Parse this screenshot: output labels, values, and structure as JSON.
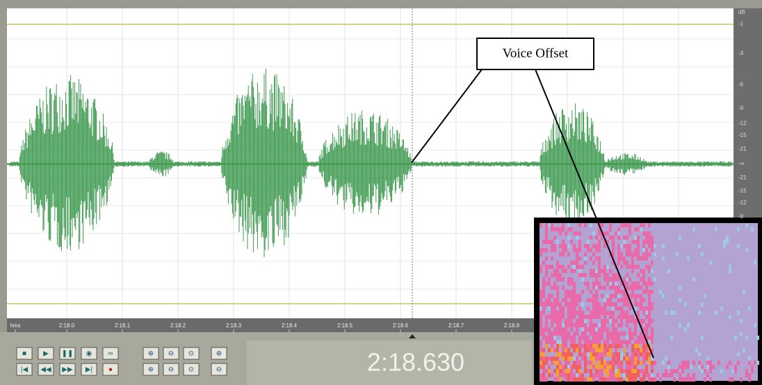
{
  "window": {
    "callout": "Voice Offset",
    "time_display": "2:18.630",
    "time_ruler": [
      "hms",
      "2:18.0",
      "2:18.1",
      "2:18.2",
      "2:18.3",
      "2:18.4",
      "2:18.5",
      "2:18.6",
      "2:18.7",
      "2:18.8"
    ],
    "db_ruler": [
      "dB",
      "-1",
      "-3",
      "-6",
      "-9",
      "-12",
      "-15",
      "-21",
      "-∞",
      "-21",
      "-15",
      "-12",
      "-9"
    ]
  }
}
